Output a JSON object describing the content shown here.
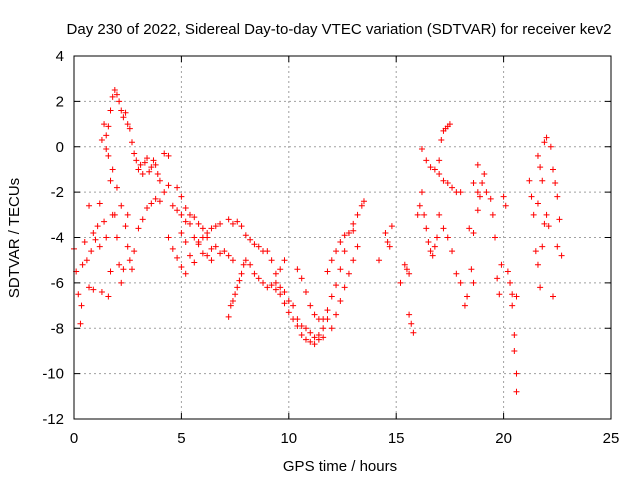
{
  "chart_data": {
    "type": "scatter",
    "title": "Day 230 of 2022, Sidereal Day-to-day VTEC variation (SDTVAR) for receiver kev2",
    "xlabel": "GPS time / hours",
    "ylabel": "SDTVAR / TECUs",
    "xlim": [
      0,
      25
    ],
    "ylim": [
      -12,
      4
    ],
    "xticks": [
      0,
      5,
      10,
      15,
      20,
      25
    ],
    "yticks": [
      -12,
      -10,
      -8,
      -6,
      -4,
      -2,
      0,
      2,
      4
    ],
    "grid": true,
    "marker": "+",
    "color": "#ff0000",
    "series": [
      {
        "name": "SDTVAR",
        "points": [
          [
            0.0,
            -4.5
          ],
          [
            0.1,
            -5.5
          ],
          [
            0.2,
            -6.5
          ],
          [
            0.3,
            -7.8
          ],
          [
            0.35,
            -7.0
          ],
          [
            0.4,
            -5.2
          ],
          [
            0.5,
            -4.2
          ],
          [
            0.6,
            -5.0
          ],
          [
            0.7,
            -6.2
          ],
          [
            0.8,
            -4.6
          ],
          [
            0.9,
            -3.8
          ],
          [
            1.0,
            -4.1
          ],
          [
            1.1,
            -3.5
          ],
          [
            1.2,
            -4.4
          ],
          [
            1.3,
            -6.4
          ],
          [
            1.4,
            -3.3
          ],
          [
            1.5,
            -4.0
          ],
          [
            1.6,
            -6.6
          ],
          [
            1.7,
            -5.5
          ],
          [
            1.8,
            -3.0
          ],
          [
            1.2,
            -2.5
          ],
          [
            0.7,
            -2.6
          ],
          [
            0.9,
            -6.3
          ],
          [
            1.3,
            0.3
          ],
          [
            1.4,
            1.0
          ],
          [
            1.5,
            0.5
          ],
          [
            1.6,
            0.9
          ],
          [
            1.7,
            1.6
          ],
          [
            1.8,
            2.2
          ],
          [
            1.9,
            2.5
          ],
          [
            2.0,
            2.3
          ],
          [
            2.1,
            2.0
          ],
          [
            2.2,
            1.6
          ],
          [
            2.3,
            1.3
          ],
          [
            2.4,
            1.5
          ],
          [
            2.5,
            1.0
          ],
          [
            2.6,
            0.8
          ],
          [
            2.7,
            0.2
          ],
          [
            2.8,
            -0.3
          ],
          [
            2.9,
            -0.6
          ],
          [
            3.0,
            -1.0
          ],
          [
            3.1,
            -0.8
          ],
          [
            3.2,
            -1.2
          ],
          [
            3.3,
            -0.7
          ],
          [
            3.4,
            -0.5
          ],
          [
            3.5,
            -1.1
          ],
          [
            3.6,
            -0.9
          ],
          [
            3.7,
            -0.6
          ],
          [
            3.8,
            -0.8
          ],
          [
            3.9,
            -1.2
          ],
          [
            4.0,
            -1.5
          ],
          [
            1.6,
            -0.4
          ],
          [
            1.8,
            -1.0
          ],
          [
            2.0,
            -1.8
          ],
          [
            2.2,
            -2.6
          ],
          [
            2.4,
            -3.5
          ],
          [
            2.5,
            -4.4
          ],
          [
            2.6,
            -5.0
          ],
          [
            2.7,
            -5.4
          ],
          [
            2.8,
            -4.6
          ],
          [
            3.0,
            -3.6
          ],
          [
            3.2,
            -3.2
          ],
          [
            3.4,
            -2.7
          ],
          [
            3.6,
            -2.5
          ],
          [
            3.8,
            -2.3
          ],
          [
            4.0,
            -2.4
          ],
          [
            4.2,
            -2.0
          ],
          [
            4.4,
            -1.7
          ],
          [
            1.5,
            -0.1
          ],
          [
            1.7,
            -1.5
          ],
          [
            1.9,
            -3.0
          ],
          [
            2.0,
            -4.0
          ],
          [
            2.1,
            -5.2
          ],
          [
            2.2,
            -6.0
          ],
          [
            2.3,
            -5.4
          ],
          [
            2.5,
            -3.0
          ],
          [
            4.2,
            -0.3
          ],
          [
            4.4,
            -0.4
          ],
          [
            4.6,
            -2.6
          ],
          [
            4.8,
            -2.8
          ],
          [
            5.0,
            -3.0
          ],
          [
            5.2,
            -3.3
          ],
          [
            5.4,
            -3.0
          ],
          [
            5.6,
            -3.1
          ],
          [
            5.8,
            -3.4
          ],
          [
            6.0,
            -3.6
          ],
          [
            6.2,
            -4.0
          ],
          [
            6.4,
            -4.5
          ],
          [
            6.6,
            -4.4
          ],
          [
            6.8,
            -4.7
          ],
          [
            7.0,
            -4.6
          ],
          [
            7.2,
            -4.8
          ],
          [
            7.4,
            -5.0
          ],
          [
            4.8,
            -1.8
          ],
          [
            5.0,
            -2.2
          ],
          [
            5.2,
            -2.7
          ],
          [
            5.4,
            -3.4
          ],
          [
            5.6,
            -4.0
          ],
          [
            5.8,
            -4.3
          ],
          [
            6.0,
            -4.7
          ],
          [
            6.2,
            -4.8
          ],
          [
            6.4,
            -5.0
          ],
          [
            5.0,
            -3.8
          ],
          [
            5.2,
            -4.2
          ],
          [
            5.4,
            -4.8
          ],
          [
            5.6,
            -5.1
          ],
          [
            5.8,
            -4.2
          ],
          [
            6.0,
            -4.0
          ],
          [
            6.2,
            -3.8
          ],
          [
            6.4,
            -3.6
          ],
          [
            6.6,
            -3.5
          ],
          [
            6.8,
            -3.4
          ],
          [
            4.6,
            -4.5
          ],
          [
            4.8,
            -4.9
          ],
          [
            5.0,
            -5.3
          ],
          [
            5.2,
            -5.6
          ],
          [
            4.4,
            -4.0
          ],
          [
            7.2,
            -3.2
          ],
          [
            7.4,
            -3.4
          ],
          [
            7.6,
            -3.3
          ],
          [
            7.8,
            -3.5
          ],
          [
            8.0,
            -3.9
          ],
          [
            8.2,
            -4.1
          ],
          [
            8.4,
            -4.3
          ],
          [
            8.6,
            -4.4
          ],
          [
            8.8,
            -4.6
          ],
          [
            9.0,
            -4.6
          ],
          [
            9.2,
            -5.0
          ],
          [
            9.4,
            -5.6
          ],
          [
            9.6,
            -6.2
          ],
          [
            9.8,
            -6.4
          ],
          [
            10.0,
            -6.8
          ],
          [
            10.2,
            -7.0
          ],
          [
            10.4,
            -7.6
          ],
          [
            10.6,
            -7.9
          ],
          [
            10.8,
            -8.0
          ],
          [
            11.0,
            -8.2
          ],
          [
            11.2,
            -8.4
          ],
          [
            11.4,
            -8.3
          ],
          [
            11.6,
            -8.0
          ],
          [
            11.8,
            -7.6
          ],
          [
            7.2,
            -7.5
          ],
          [
            7.3,
            -7.0
          ],
          [
            7.4,
            -6.8
          ],
          [
            7.5,
            -6.5
          ],
          [
            7.6,
            -6.2
          ],
          [
            7.7,
            -5.9
          ],
          [
            7.8,
            -5.6
          ],
          [
            7.9,
            -5.2
          ],
          [
            8.0,
            -5.0
          ],
          [
            8.2,
            -5.2
          ],
          [
            8.4,
            -5.6
          ],
          [
            8.6,
            -5.8
          ],
          [
            8.8,
            -6.0
          ],
          [
            9.0,
            -6.2
          ],
          [
            9.2,
            -6.1
          ],
          [
            9.4,
            -6.3
          ],
          [
            9.6,
            -6.5
          ],
          [
            9.8,
            -6.9
          ],
          [
            10.0,
            -7.3
          ],
          [
            10.2,
            -7.6
          ],
          [
            10.4,
            -7.9
          ],
          [
            10.6,
            -8.3
          ],
          [
            10.8,
            -8.5
          ],
          [
            11.0,
            -8.6
          ],
          [
            11.2,
            -8.7
          ],
          [
            11.4,
            -8.5
          ],
          [
            11.6,
            -8.4
          ],
          [
            9.4,
            -6.0
          ],
          [
            9.6,
            -5.4
          ],
          [
            9.8,
            -5.0
          ],
          [
            10.4,
            -5.4
          ],
          [
            10.6,
            -5.8
          ],
          [
            10.8,
            -6.4
          ],
          [
            11.0,
            -7.0
          ],
          [
            11.2,
            -7.4
          ],
          [
            11.4,
            -7.6
          ],
          [
            11.6,
            -7.6
          ],
          [
            11.8,
            -7.2
          ],
          [
            12.0,
            -6.6
          ],
          [
            12.2,
            -6.1
          ],
          [
            12.4,
            -5.4
          ],
          [
            12.6,
            -4.6
          ],
          [
            12.8,
            -3.8
          ],
          [
            13.0,
            -3.4
          ],
          [
            13.2,
            -3.0
          ],
          [
            13.4,
            -2.6
          ],
          [
            13.5,
            -2.4
          ],
          [
            11.8,
            -5.5
          ],
          [
            12.0,
            -5.0
          ],
          [
            12.2,
            -4.6
          ],
          [
            12.4,
            -4.2
          ],
          [
            12.6,
            -3.9
          ],
          [
            12.8,
            -3.8
          ],
          [
            13.0,
            -3.7
          ],
          [
            12.0,
            -8.0
          ],
          [
            12.2,
            -7.4
          ],
          [
            12.4,
            -6.8
          ],
          [
            12.6,
            -6.2
          ],
          [
            12.8,
            -5.6
          ],
          [
            13.0,
            -5.0
          ],
          [
            13.2,
            -4.4
          ],
          [
            14.2,
            -5.0
          ],
          [
            14.5,
            -3.8
          ],
          [
            14.6,
            -4.2
          ],
          [
            14.7,
            -4.4
          ],
          [
            14.8,
            -3.5
          ],
          [
            15.2,
            -6.0
          ],
          [
            15.4,
            -5.2
          ],
          [
            15.5,
            -5.4
          ],
          [
            15.6,
            -5.6
          ],
          [
            15.7,
            -7.8
          ],
          [
            15.8,
            -8.2
          ],
          [
            15.6,
            -7.4
          ],
          [
            16.0,
            -3.0
          ],
          [
            16.1,
            -2.6
          ],
          [
            16.2,
            -2.0
          ],
          [
            16.3,
            -3.0
          ],
          [
            16.4,
            -3.6
          ],
          [
            16.5,
            -4.2
          ],
          [
            16.6,
            -4.6
          ],
          [
            16.7,
            -4.8
          ],
          [
            16.8,
            -4.4
          ],
          [
            16.9,
            -4.0
          ],
          [
            16.2,
            -0.1
          ],
          [
            16.4,
            -0.6
          ],
          [
            16.6,
            -0.9
          ],
          [
            16.8,
            -1.0
          ],
          [
            17.0,
            -0.6
          ],
          [
            17.1,
            0.3
          ],
          [
            17.2,
            0.7
          ],
          [
            17.3,
            0.8
          ],
          [
            17.4,
            0.9
          ],
          [
            17.5,
            1.0
          ],
          [
            17.0,
            -1.2
          ],
          [
            17.2,
            -1.5
          ],
          [
            17.4,
            -1.6
          ],
          [
            17.6,
            -1.8
          ],
          [
            17.8,
            -2.0
          ],
          [
            18.0,
            -2.0
          ],
          [
            17.0,
            -3.0
          ],
          [
            17.2,
            -3.6
          ],
          [
            17.4,
            -4.0
          ],
          [
            17.6,
            -4.6
          ],
          [
            17.8,
            -5.6
          ],
          [
            18.0,
            -6.0
          ],
          [
            18.2,
            -7.0
          ],
          [
            18.3,
            -6.6
          ],
          [
            18.4,
            -3.6
          ],
          [
            18.6,
            -3.8
          ],
          [
            18.8,
            -2.8
          ],
          [
            18.9,
            -2.2
          ],
          [
            19.0,
            -1.6
          ],
          [
            19.1,
            -1.2
          ],
          [
            18.8,
            -0.8
          ],
          [
            18.6,
            -1.6
          ],
          [
            18.8,
            -2.0
          ],
          [
            19.2,
            -2.0
          ],
          [
            19.4,
            -2.3
          ],
          [
            18.5,
            -5.4
          ],
          [
            18.6,
            -6.0
          ],
          [
            19.5,
            -3.0
          ],
          [
            19.6,
            -4.0
          ],
          [
            19.7,
            -5.8
          ],
          [
            19.8,
            -6.5
          ],
          [
            19.9,
            -5.2
          ],
          [
            20.0,
            -2.2
          ],
          [
            20.1,
            -2.6
          ],
          [
            20.2,
            -5.5
          ],
          [
            20.3,
            -6.0
          ],
          [
            20.4,
            -6.5
          ],
          [
            20.5,
            -8.3
          ],
          [
            20.5,
            -9.0
          ],
          [
            20.6,
            -10.0
          ],
          [
            20.6,
            -10.8
          ],
          [
            20.4,
            -7.0
          ],
          [
            20.6,
            -6.6
          ],
          [
            21.2,
            -1.5
          ],
          [
            21.3,
            -2.2
          ],
          [
            21.4,
            -3.0
          ],
          [
            21.5,
            -4.6
          ],
          [
            21.6,
            -5.2
          ],
          [
            21.7,
            -6.2
          ],
          [
            21.8,
            -4.4
          ],
          [
            21.9,
            -3.4
          ],
          [
            22.0,
            -3.0
          ],
          [
            22.1,
            -3.5
          ],
          [
            21.6,
            -2.5
          ],
          [
            21.8,
            -1.5
          ],
          [
            21.9,
            0.2
          ],
          [
            22.0,
            0.4
          ],
          [
            22.2,
            0.0
          ],
          [
            22.3,
            -1.0
          ],
          [
            22.4,
            -1.6
          ],
          [
            22.5,
            -2.2
          ],
          [
            22.6,
            -3.2
          ],
          [
            22.7,
            -4.8
          ],
          [
            21.6,
            -0.4
          ],
          [
            21.7,
            -0.9
          ],
          [
            22.3,
            -6.6
          ],
          [
            22.5,
            -4.4
          ]
        ]
      }
    ]
  }
}
